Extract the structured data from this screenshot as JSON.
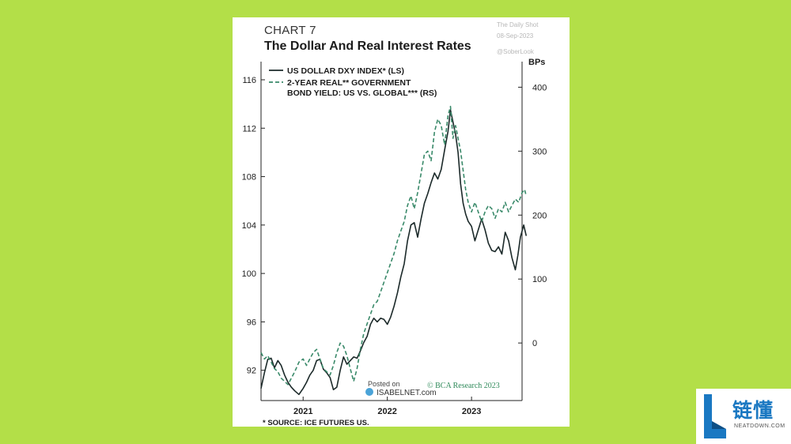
{
  "card": {
    "chart_label": "CHART 7",
    "title": "The Dollar And Real Interest Rates",
    "watermark_source": "The Daily Shot",
    "watermark_date": "08-Sep-2023",
    "watermark_handle": "@SoberLook",
    "posted_on": "Posted on",
    "posted_site": "ISABELNET.com",
    "copyright": "© BCA Research 2023",
    "footnote": "*  SOURCE: ICE FUTURES US."
  },
  "badge": {
    "brand_cn": "链懂",
    "brand_url": "NEATDOWN.COM",
    "brand_color": "#1a78c2"
  },
  "chart_data": {
    "type": "line",
    "title": "The Dollar And Real Interest Rates",
    "left_axis": {
      "label": "",
      "ticks": [
        92,
        96,
        100,
        104,
        108,
        112,
        116
      ],
      "range": [
        89.5,
        117.5
      ]
    },
    "right_axis": {
      "label": "BPs",
      "ticks": [
        0,
        100,
        200,
        300,
        400
      ],
      "range": [
        -90,
        440
      ]
    },
    "x_axis": {
      "ticks": [
        "2021",
        "2022",
        "2023"
      ],
      "range": [
        2020.5,
        2023.6
      ]
    },
    "grid": false,
    "legend_position": "top-left",
    "series": [
      {
        "name": "US DOLLAR DXY INDEX* (LS)",
        "axis": "left",
        "style": "solid",
        "color": "#1c2a2a",
        "points": [
          [
            2020.5,
            90.5
          ],
          [
            2020.54,
            91.8
          ],
          [
            2020.58,
            92.9
          ],
          [
            2020.62,
            93.0
          ],
          [
            2020.66,
            92.2
          ],
          [
            2020.7,
            92.8
          ],
          [
            2020.74,
            92.4
          ],
          [
            2020.78,
            91.6
          ],
          [
            2020.82,
            91.0
          ],
          [
            2020.86,
            90.6
          ],
          [
            2020.9,
            90.3
          ],
          [
            2020.95,
            90.0
          ],
          [
            2021.0,
            90.5
          ],
          [
            2021.04,
            91.0
          ],
          [
            2021.08,
            91.6
          ],
          [
            2021.12,
            92.0
          ],
          [
            2021.16,
            92.8
          ],
          [
            2021.2,
            92.9
          ],
          [
            2021.24,
            92.1
          ],
          [
            2021.28,
            91.8
          ],
          [
            2021.32,
            91.4
          ],
          [
            2021.36,
            90.4
          ],
          [
            2021.4,
            90.6
          ],
          [
            2021.44,
            92.0
          ],
          [
            2021.48,
            93.1
          ],
          [
            2021.52,
            92.5
          ],
          [
            2021.56,
            92.8
          ],
          [
            2021.6,
            93.1
          ],
          [
            2021.64,
            93.0
          ],
          [
            2021.68,
            93.6
          ],
          [
            2021.72,
            94.3
          ],
          [
            2021.76,
            94.8
          ],
          [
            2021.8,
            95.8
          ],
          [
            2021.84,
            96.3
          ],
          [
            2021.88,
            96.0
          ],
          [
            2021.92,
            96.3
          ],
          [
            2021.96,
            96.2
          ],
          [
            2022.0,
            95.8
          ],
          [
            2022.04,
            96.4
          ],
          [
            2022.08,
            97.3
          ],
          [
            2022.12,
            98.4
          ],
          [
            2022.16,
            99.7
          ],
          [
            2022.2,
            100.8
          ],
          [
            2022.24,
            102.7
          ],
          [
            2022.28,
            104.0
          ],
          [
            2022.32,
            104.2
          ],
          [
            2022.36,
            103.0
          ],
          [
            2022.4,
            104.5
          ],
          [
            2022.44,
            105.8
          ],
          [
            2022.48,
            106.6
          ],
          [
            2022.52,
            107.5
          ],
          [
            2022.56,
            108.3
          ],
          [
            2022.6,
            107.8
          ],
          [
            2022.64,
            108.6
          ],
          [
            2022.68,
            110.2
          ],
          [
            2022.72,
            111.7
          ],
          [
            2022.75,
            113.5
          ],
          [
            2022.78,
            112.5
          ],
          [
            2022.81,
            111.5
          ],
          [
            2022.84,
            110.0
          ],
          [
            2022.87,
            107.4
          ],
          [
            2022.9,
            105.8
          ],
          [
            2022.93,
            104.9
          ],
          [
            2022.96,
            104.3
          ],
          [
            2023.0,
            103.9
          ],
          [
            2023.04,
            102.7
          ],
          [
            2023.08,
            103.6
          ],
          [
            2023.12,
            104.5
          ],
          [
            2023.16,
            103.6
          ],
          [
            2023.2,
            102.5
          ],
          [
            2023.24,
            101.9
          ],
          [
            2023.28,
            101.8
          ],
          [
            2023.32,
            102.2
          ],
          [
            2023.36,
            101.6
          ],
          [
            2023.4,
            103.4
          ],
          [
            2023.44,
            102.7
          ],
          [
            2023.48,
            101.3
          ],
          [
            2023.52,
            100.3
          ],
          [
            2023.55,
            101.5
          ],
          [
            2023.58,
            103.0
          ],
          [
            2023.62,
            104.0
          ],
          [
            2023.65,
            103.1
          ]
        ]
      },
      {
        "name": "2-YEAR REAL** GOVERNMENT BOND YIELD: US VS. GLOBAL*** (RS)",
        "axis": "right",
        "style": "dashed",
        "color": "#3a8a6a",
        "points": [
          [
            2020.5,
            -15
          ],
          [
            2020.54,
            -25
          ],
          [
            2020.58,
            -20
          ],
          [
            2020.62,
            -30
          ],
          [
            2020.66,
            -40
          ],
          [
            2020.7,
            -45
          ],
          [
            2020.74,
            -55
          ],
          [
            2020.78,
            -60
          ],
          [
            2020.82,
            -65
          ],
          [
            2020.86,
            -55
          ],
          [
            2020.9,
            -45
          ],
          [
            2020.95,
            -30
          ],
          [
            2021.0,
            -25
          ],
          [
            2021.04,
            -35
          ],
          [
            2021.08,
            -25
          ],
          [
            2021.12,
            -15
          ],
          [
            2021.16,
            -10
          ],
          [
            2021.2,
            -25
          ],
          [
            2021.24,
            -40
          ],
          [
            2021.28,
            -45
          ],
          [
            2021.32,
            -50
          ],
          [
            2021.36,
            -35
          ],
          [
            2021.4,
            -15
          ],
          [
            2021.44,
            0
          ],
          [
            2021.48,
            -5
          ],
          [
            2021.52,
            -20
          ],
          [
            2021.56,
            -40
          ],
          [
            2021.6,
            -60
          ],
          [
            2021.64,
            -40
          ],
          [
            2021.68,
            -10
          ],
          [
            2021.72,
            15
          ],
          [
            2021.76,
            30
          ],
          [
            2021.8,
            45
          ],
          [
            2021.84,
            60
          ],
          [
            2021.88,
            65
          ],
          [
            2021.92,
            80
          ],
          [
            2021.96,
            95
          ],
          [
            2022.0,
            110
          ],
          [
            2022.04,
            125
          ],
          [
            2022.08,
            140
          ],
          [
            2022.12,
            160
          ],
          [
            2022.16,
            175
          ],
          [
            2022.2,
            190
          ],
          [
            2022.24,
            215
          ],
          [
            2022.28,
            230
          ],
          [
            2022.32,
            210
          ],
          [
            2022.36,
            235
          ],
          [
            2022.4,
            265
          ],
          [
            2022.44,
            295
          ],
          [
            2022.48,
            300
          ],
          [
            2022.52,
            285
          ],
          [
            2022.56,
            330
          ],
          [
            2022.6,
            350
          ],
          [
            2022.64,
            340
          ],
          [
            2022.68,
            310
          ],
          [
            2022.72,
            355
          ],
          [
            2022.75,
            370
          ],
          [
            2022.78,
            320
          ],
          [
            2022.81,
            340
          ],
          [
            2022.84,
            320
          ],
          [
            2022.87,
            300
          ],
          [
            2022.9,
            270
          ],
          [
            2022.93,
            240
          ],
          [
            2022.96,
            220
          ],
          [
            2023.0,
            205
          ],
          [
            2023.04,
            220
          ],
          [
            2023.08,
            205
          ],
          [
            2023.12,
            190
          ],
          [
            2023.16,
            205
          ],
          [
            2023.2,
            215
          ],
          [
            2023.24,
            210
          ],
          [
            2023.28,
            195
          ],
          [
            2023.32,
            210
          ],
          [
            2023.36,
            205
          ],
          [
            2023.4,
            220
          ],
          [
            2023.44,
            205
          ],
          [
            2023.48,
            215
          ],
          [
            2023.52,
            225
          ],
          [
            2023.56,
            220
          ],
          [
            2023.6,
            235
          ],
          [
            2023.63,
            240
          ],
          [
            2023.65,
            230
          ]
        ]
      }
    ]
  }
}
